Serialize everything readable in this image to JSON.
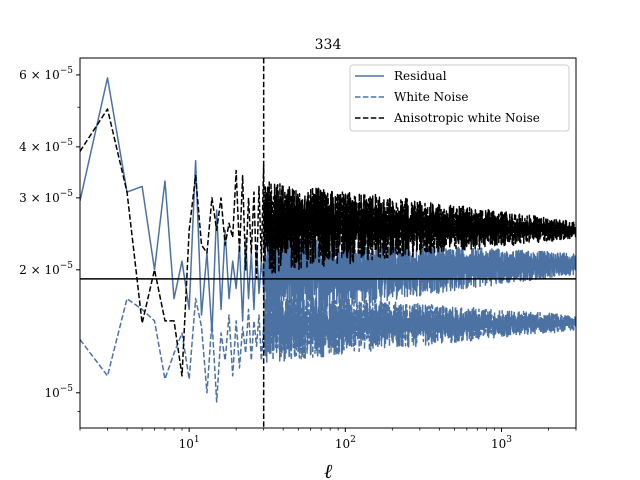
{
  "chart_data": {
    "type": "line",
    "title": "334",
    "xlabel": "ℓ",
    "ylabel": "",
    "xscale": "log",
    "yscale": "log",
    "xlim": [
      2,
      3000
    ],
    "ylim": [
      8.2e-06,
      6.6e-05
    ],
    "x_major_ticks": [
      {
        "value": 10,
        "label": "10",
        "exp": "1"
      },
      {
        "value": 100,
        "label": "10",
        "exp": "2"
      },
      {
        "value": 1000,
        "label": "10",
        "exp": "3"
      }
    ],
    "y_ticks": [
      {
        "value": 1e-05,
        "label": "10",
        "exp": "−5",
        "mult": ""
      },
      {
        "value": 2e-05,
        "label": "10",
        "exp": "−5",
        "mult": "2 × "
      },
      {
        "value": 3e-05,
        "label": "10",
        "exp": "−5",
        "mult": "3 × "
      },
      {
        "value": 4e-05,
        "label": "10",
        "exp": "−5",
        "mult": "4 × "
      },
      {
        "value": 6e-05,
        "label": "10",
        "exp": "−5",
        "mult": "6 × "
      }
    ],
    "y_minor_unlabeled": [
      5e-05,
      9e-06
    ],
    "hline": {
      "y": 1.9e-05
    },
    "vline": {
      "x": 30
    },
    "legend_position": "upper right",
    "series": [
      {
        "name": "Residual",
        "color": "#4c72a4",
        "dash": "solid",
        "points": [
          [
            2,
            2.95e-05
          ],
          [
            3,
            5.9e-05
          ],
          [
            4,
            3.1e-05
          ],
          [
            5,
            3.2e-05
          ],
          [
            6,
            2e-05
          ],
          [
            7,
            3.3e-05
          ],
          [
            8,
            1.7e-05
          ],
          [
            9,
            2.1e-05
          ],
          [
            10,
            1.6e-05
          ],
          [
            11,
            3.7e-05
          ],
          [
            12,
            1.55e-05
          ],
          [
            13,
            2.2e-05
          ],
          [
            14,
            1.4e-05
          ],
          [
            15,
            2.8e-05
          ],
          [
            16,
            1.6e-05
          ],
          [
            17,
            2.5e-05
          ],
          [
            18,
            1.7e-05
          ],
          [
            19,
            2.1e-05
          ],
          [
            20,
            1.8e-05
          ],
          [
            21,
            2.3e-05
          ],
          [
            22,
            1.5e-05
          ],
          [
            23,
            2.4e-05
          ],
          [
            24,
            1.7e-05
          ],
          [
            25,
            2.2e-05
          ],
          [
            26,
            1.6e-05
          ],
          [
            27,
            2.3e-05
          ],
          [
            28,
            1.75e-05
          ],
          [
            29,
            2.1e-05
          ],
          [
            30,
            1.8e-05
          ]
        ],
        "noise": {
          "x_from": 30,
          "x_to": 3000,
          "lo_start": 1.5e-05,
          "lo_end": 1.95e-05,
          "hi_start": 2.4e-05,
          "hi_end": 2.2e-05
        }
      },
      {
        "name": "White Noise",
        "color": "#4c72a4",
        "dash": "dashed",
        "points": [
          [
            2,
            1.35e-05
          ],
          [
            3,
            1.1e-05
          ],
          [
            4,
            1.7e-05
          ],
          [
            5,
            1.6e-05
          ],
          [
            6,
            1.5e-05
          ],
          [
            7,
            1.08e-05
          ],
          [
            8,
            1.25e-05
          ],
          [
            9,
            1.4e-05
          ],
          [
            10,
            1.08e-05
          ],
          [
            11,
            1.7e-05
          ],
          [
            12,
            1.45e-05
          ],
          [
            13,
            1e-05
          ],
          [
            14,
            1.5e-05
          ],
          [
            15,
            9.5e-06
          ],
          [
            16,
            1.4e-05
          ],
          [
            17,
            1.2e-05
          ],
          [
            18,
            1.55e-05
          ],
          [
            19,
            1.1e-05
          ],
          [
            20,
            1.5e-05
          ],
          [
            21,
            1.15e-05
          ],
          [
            22,
            1.45e-05
          ],
          [
            23,
            1.25e-05
          ],
          [
            24,
            1.6e-05
          ],
          [
            25,
            1.2e-05
          ],
          [
            26,
            1.5e-05
          ],
          [
            27,
            1.3e-05
          ],
          [
            28,
            1.55e-05
          ],
          [
            29,
            1.2e-05
          ],
          [
            30,
            1.45e-05
          ]
        ],
        "noise": {
          "x_from": 30,
          "x_to": 3000,
          "lo_start": 1.18e-05,
          "lo_end": 1.42e-05,
          "hi_start": 1.75e-05,
          "hi_end": 1.55e-05
        }
      },
      {
        "name": "Anisotropic white Noise",
        "color": "#000000",
        "dash": "dashed",
        "points": [
          [
            2,
            3.9e-05
          ],
          [
            3,
            4.95e-05
          ],
          [
            4,
            3.1e-05
          ],
          [
            5,
            1.48e-05
          ],
          [
            6,
            2e-05
          ],
          [
            7,
            1.5e-05
          ],
          [
            8,
            1.5e-05
          ],
          [
            9,
            1.1e-05
          ],
          [
            10,
            2.5e-05
          ],
          [
            11,
            3.4e-05
          ],
          [
            12,
            2.3e-05
          ],
          [
            13,
            2.2e-05
          ],
          [
            14,
            3e-05
          ],
          [
            15,
            2.5e-05
          ],
          [
            16,
            3e-05
          ],
          [
            17,
            2.3e-05
          ],
          [
            18,
            2.6e-05
          ],
          [
            19,
            2.4e-05
          ],
          [
            20,
            3.5e-05
          ],
          [
            21,
            2.2e-05
          ],
          [
            22,
            3.4e-05
          ],
          [
            23,
            2e-05
          ],
          [
            24,
            3e-05
          ],
          [
            25,
            2.2e-05
          ],
          [
            26,
            3.1e-05
          ],
          [
            27,
            1.9e-05
          ],
          [
            28,
            3.2e-05
          ],
          [
            29,
            2.1e-05
          ],
          [
            30,
            3.6e-05
          ]
        ],
        "noise": {
          "x_from": 30,
          "x_to": 3000,
          "lo_start": 1.95e-05,
          "lo_end": 2.38e-05,
          "hi_start": 3.3e-05,
          "hi_end": 2.62e-05
        }
      }
    ]
  }
}
